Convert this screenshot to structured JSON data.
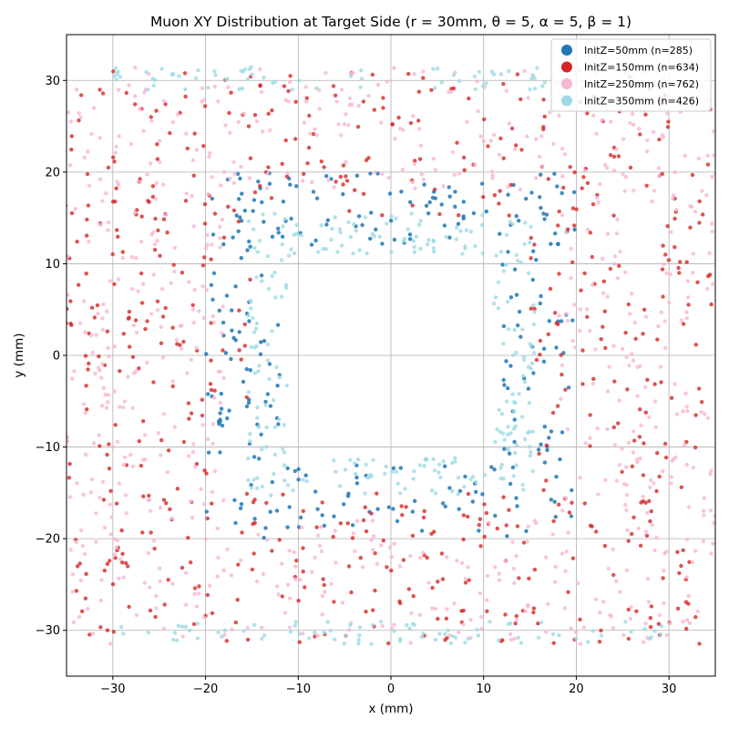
{
  "chart_data": {
    "type": "scatter",
    "title": "Muon XY Distribution at Target Side (r = 30mm, θ = 5, α = 5, β = 1)",
    "xlabel": "x (mm)",
    "ylabel": "y (mm)",
    "xlim": [
      -35,
      35
    ],
    "ylim": [
      -35,
      35
    ],
    "xticks": [
      -30,
      -20,
      -10,
      0,
      10,
      20,
      30
    ],
    "yticks": [
      -30,
      -20,
      -10,
      0,
      10,
      20,
      30
    ],
    "tick_labels_x": [
      "−30",
      "−20",
      "−10",
      "0",
      "10",
      "20",
      "30"
    ],
    "tick_labels_y": [
      "−30",
      "−20",
      "−10",
      "0",
      "10",
      "20",
      "30"
    ],
    "grid": true,
    "legend_position": "top-right",
    "distribution": "points fill a band between an inner rounded square (half-width about 11-13 mm) and an outer boundary clipped at |y| ≈ 31.5 mm, extending beyond the plotted x range",
    "series": [
      {
        "name": "InitZ=50mm (n=285)",
        "count": 285,
        "color": "#1f77b4",
        "region": "inner edge of the band (|x| or |y| ≈ 12-20 mm)"
      },
      {
        "name": "InitZ=150mm (n=634)",
        "count": 634,
        "color": "#d62728",
        "region": "spread across the band (|x| or |y| ≈ 15-35 mm)"
      },
      {
        "name": "InitZ=250mm (n=762)",
        "count": 762,
        "color": "#f7b6d2",
        "region": "outer part of the band (|x| or |y| ≈ 18-35 mm)"
      },
      {
        "name": "InitZ=350mm (n=426)",
        "count": 426,
        "color": "#9edae5",
        "region": "inner edge of the band and outer edges (|x| ≈ 11-15 mm, |y| ≈ 29-31.5 mm)"
      }
    ]
  }
}
